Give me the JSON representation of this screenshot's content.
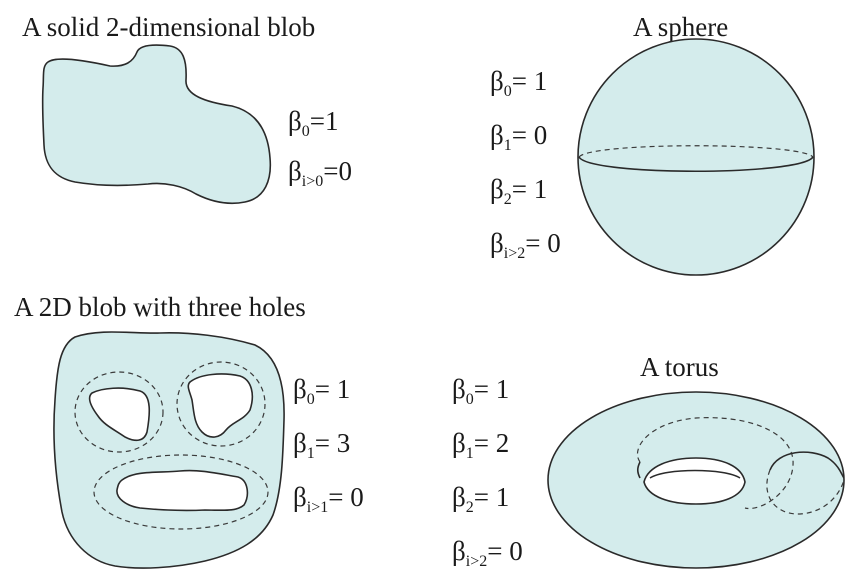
{
  "colors": {
    "fill": "#d4ecec",
    "stroke": "#2a2a2a",
    "text": "#1a1a1a"
  },
  "panels": {
    "blob": {
      "title": "A solid 2-dimensional blob",
      "b0_sym": "β",
      "b0_sub": "0",
      "b0_val": "=1",
      "bi_sym": "β",
      "bi_sub": "i>0",
      "bi_val": "=0"
    },
    "sphere": {
      "title": "A sphere",
      "b0_sym": "β",
      "b0_sub": "0",
      "b0_val": "= 1",
      "b1_sym": "β",
      "b1_sub": "1",
      "b1_val": "= 0",
      "b2_sym": "β",
      "b2_sub": "2",
      "b2_val": "= 1",
      "bi_sym": "β",
      "bi_sub": "i>2",
      "bi_val": "= 0"
    },
    "holes": {
      "title": "A 2D blob with three holes",
      "b0_sym": "β",
      "b0_sub": "0",
      "b0_val": "= 1",
      "b1_sym": "β",
      "b1_sub": "1",
      "b1_val": "= 3",
      "bi_sym": "β",
      "bi_sub": "i>1",
      "bi_val": "= 0"
    },
    "torus": {
      "title": "A torus",
      "b0_sym": "β",
      "b0_sub": "0",
      "b0_val": "= 1",
      "b1_sym": "β",
      "b1_sub": "1",
      "b1_val": "= 2",
      "b2_sym": "β",
      "b2_sub": "2",
      "b2_val": "= 1",
      "bi_sym": "β",
      "bi_sub": "i>2",
      "bi_val": "= 0"
    }
  }
}
